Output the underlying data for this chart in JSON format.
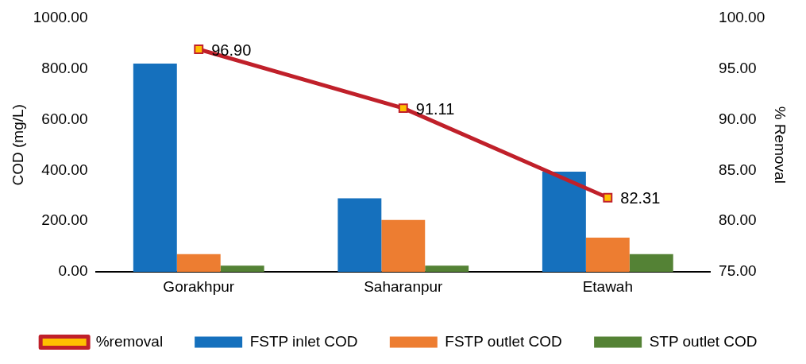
{
  "chart_data": {
    "type": "bar",
    "ylabel": "COD (mg/L)",
    "y2label": "% Removal",
    "categories": [
      "Gorakhpur",
      "Saharanpur",
      "Etawah"
    ],
    "series": [
      {
        "name": "FSTP inlet COD",
        "color": "#1570bd",
        "values": [
          820,
          290,
          395
        ]
      },
      {
        "name": "FSTP outlet COD",
        "color": "#ed7d31",
        "values": [
          70,
          205,
          135
        ]
      },
      {
        "name": "STP outlet COD",
        "color": "#548235",
        "values": [
          25,
          25,
          70
        ]
      },
      {
        "name": "%removal",
        "type": "line",
        "axis": "y2",
        "color": "#c0202a",
        "marker": "square",
        "values": [
          96.9,
          91.11,
          82.31
        ],
        "value_labels": [
          "96.90",
          "91.11",
          "82.31"
        ]
      }
    ],
    "ylim": [
      0,
      1000
    ],
    "yticks": [
      {
        "value": 0,
        "label": "0.00"
      },
      {
        "value": 200,
        "label": "200.00"
      },
      {
        "value": 400,
        "label": "400.00"
      },
      {
        "value": 600,
        "label": "600.00"
      },
      {
        "value": 800,
        "label": "800.00"
      },
      {
        "value": 1000,
        "label": "1000.00"
      }
    ],
    "y2lim": [
      75,
      100
    ],
    "y2ticks": [
      {
        "value": 75,
        "label": "75.00"
      },
      {
        "value": 80,
        "label": "80.00"
      },
      {
        "value": 85,
        "label": "85.00"
      },
      {
        "value": 90,
        "label": "90.00"
      },
      {
        "value": 95,
        "label": "95.00"
      },
      {
        "value": 100,
        "label": "100.00"
      }
    ],
    "grid": false,
    "legend": "bottom"
  }
}
